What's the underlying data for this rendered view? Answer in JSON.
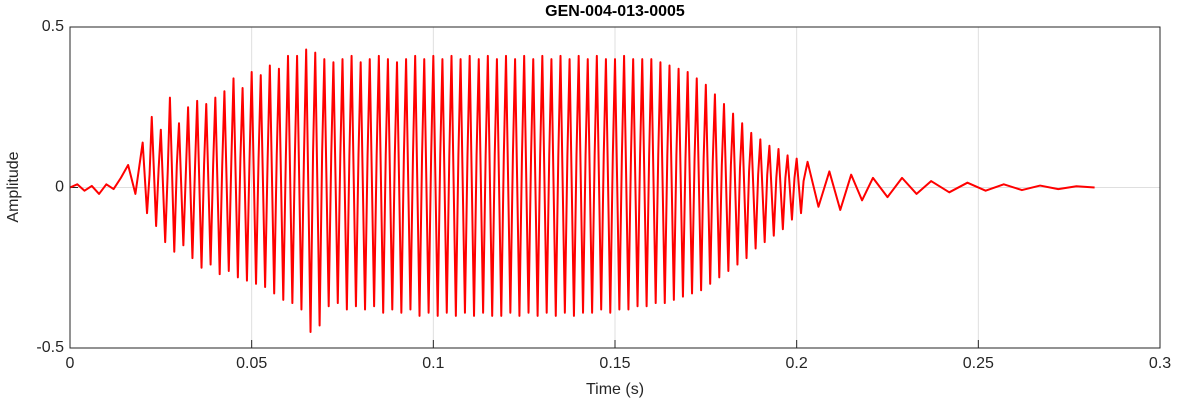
{
  "chart_data": {
    "type": "line",
    "title": "GEN-004-013-0005",
    "xlabel": "Time (s)",
    "ylabel": "Amplitude",
    "x": [
      0,
      0.002,
      0.004,
      0.006,
      0.008,
      0.01,
      0.012,
      0.014,
      0.016,
      0.018,
      0.02,
      0.0212,
      0.0219,
      0.0225,
      0.0237,
      0.0244,
      0.025,
      0.0262,
      0.0269,
      0.0275,
      0.0287,
      0.0294,
      0.03,
      0.0312,
      0.0319,
      0.0325,
      0.0337,
      0.0344,
      0.035,
      0.0362,
      0.0369,
      0.0375,
      0.0387,
      0.0394,
      0.04,
      0.0412,
      0.0419,
      0.0425,
      0.0437,
      0.0444,
      0.045,
      0.0462,
      0.0469,
      0.0475,
      0.0487,
      0.0494,
      0.05,
      0.0512,
      0.0519,
      0.0525,
      0.0537,
      0.0544,
      0.055,
      0.0562,
      0.0569,
      0.0575,
      0.0587,
      0.0594,
      0.06,
      0.0612,
      0.0619,
      0.0625,
      0.0637,
      0.0644,
      0.065,
      0.0662,
      0.0669,
      0.0675,
      0.0687,
      0.0694,
      0.07,
      0.0712,
      0.0719,
      0.0725,
      0.0737,
      0.0744,
      0.075,
      0.0762,
      0.0769,
      0.0775,
      0.0787,
      0.0794,
      0.08,
      0.0812,
      0.0819,
      0.0825,
      0.0837,
      0.0844,
      0.085,
      0.0862,
      0.0869,
      0.0875,
      0.0887,
      0.0894,
      0.09,
      0.0912,
      0.0919,
      0.0925,
      0.0937,
      0.0944,
      0.095,
      0.0962,
      0.0969,
      0.0975,
      0.0987,
      0.0994,
      0.1,
      0.1012,
      0.1019,
      0.1025,
      0.1037,
      0.1044,
      0.105,
      0.1062,
      0.1069,
      0.1075,
      0.1087,
      0.1094,
      0.11,
      0.1112,
      0.1119,
      0.1125,
      0.1137,
      0.1144,
      0.115,
      0.1162,
      0.1169,
      0.1175,
      0.1187,
      0.1194,
      0.12,
      0.1212,
      0.1219,
      0.1225,
      0.1237,
      0.1244,
      0.125,
      0.1262,
      0.1269,
      0.1275,
      0.1287,
      0.1294,
      0.13,
      0.1312,
      0.1319,
      0.1325,
      0.1337,
      0.1344,
      0.135,
      0.1362,
      0.1369,
      0.1375,
      0.1387,
      0.1394,
      0.14,
      0.1412,
      0.1419,
      0.1425,
      0.1437,
      0.1444,
      0.145,
      0.1462,
      0.1469,
      0.1475,
      0.1487,
      0.1494,
      0.15,
      0.1512,
      0.1519,
      0.1525,
      0.1537,
      0.1544,
      0.155,
      0.1562,
      0.1569,
      0.1575,
      0.1587,
      0.1594,
      0.16,
      0.1612,
      0.1619,
      0.1625,
      0.1637,
      0.1644,
      0.165,
      0.1662,
      0.1669,
      0.1675,
      0.1687,
      0.1694,
      0.17,
      0.1712,
      0.1719,
      0.1725,
      0.1737,
      0.1744,
      0.175,
      0.1762,
      0.1769,
      0.1775,
      0.1787,
      0.1794,
      0.18,
      0.1812,
      0.1819,
      0.1825,
      0.1837,
      0.1844,
      0.185,
      0.1862,
      0.1869,
      0.1875,
      0.1887,
      0.1894,
      0.19,
      0.1912,
      0.1919,
      0.1925,
      0.1937,
      0.1944,
      0.195,
      0.1962,
      0.1969,
      0.1975,
      0.1987,
      0.1994,
      0.2,
      0.2012,
      0.2019,
      0.203,
      0.206,
      0.209,
      0.212,
      0.215,
      0.218,
      0.221,
      0.225,
      0.229,
      0.233,
      0.237,
      0.242,
      0.247,
      0.252,
      0.257,
      0.262,
      0.267,
      0.272,
      0.277,
      0.282
    ],
    "series": [
      {
        "name": "Amplitude",
        "color": "#ff0000",
        "values": [
          0,
          0.01,
          -0.01,
          0.005,
          -0.02,
          0.01,
          -0.005,
          0.03,
          0.07,
          -0.02,
          0.14,
          -0.08,
          0.04,
          0.22,
          -0.12,
          0.06,
          0.18,
          -0.17,
          0.05,
          0.28,
          -0.2,
          0.07,
          0.2,
          -0.18,
          0.05,
          0.25,
          -0.22,
          0.06,
          0.27,
          -0.25,
          0.07,
          0.26,
          -0.24,
          0.07,
          0.28,
          -0.27,
          0.07,
          0.3,
          -0.26,
          0.08,
          0.34,
          -0.28,
          0.09,
          0.31,
          -0.29,
          0.08,
          0.36,
          -0.3,
          0.09,
          0.35,
          -0.31,
          0.09,
          0.38,
          -0.33,
          0.1,
          0.37,
          -0.35,
          0.09,
          0.41,
          -0.36,
          0.1,
          0.41,
          -0.38,
          0.1,
          0.43,
          -0.45,
          0.11,
          0.42,
          -0.43,
          0.11,
          0.4,
          -0.37,
          0.1,
          0.39,
          -0.36,
          0.1,
          0.4,
          -0.38,
          0.1,
          0.41,
          -0.37,
          0.1,
          0.39,
          -0.38,
          0.1,
          0.4,
          -0.37,
          0.1,
          0.41,
          -0.39,
          0.1,
          0.4,
          -0.38,
          0.1,
          0.39,
          -0.39,
          0.1,
          0.4,
          -0.38,
          0.1,
          0.41,
          -0.4,
          0.1,
          0.4,
          -0.39,
          0.1,
          0.41,
          -0.4,
          0.1,
          0.4,
          -0.39,
          0.1,
          0.41,
          -0.4,
          0.1,
          0.4,
          -0.39,
          0.1,
          0.41,
          -0.4,
          0.1,
          0.4,
          -0.39,
          0.1,
          0.41,
          -0.4,
          0.1,
          0.4,
          -0.4,
          0.1,
          0.41,
          -0.39,
          0.1,
          0.4,
          -0.4,
          0.1,
          0.41,
          -0.39,
          0.1,
          0.4,
          -0.4,
          0.1,
          0.41,
          -0.39,
          0.1,
          0.4,
          -0.4,
          0.1,
          0.41,
          -0.39,
          0.1,
          0.4,
          -0.4,
          0.1,
          0.41,
          -0.39,
          0.1,
          0.4,
          -0.39,
          0.1,
          0.41,
          -0.38,
          0.1,
          0.4,
          -0.39,
          0.1,
          0.4,
          -0.38,
          0.1,
          0.41,
          -0.38,
          0.1,
          0.4,
          -0.37,
          0.1,
          0.4,
          -0.37,
          0.1,
          0.4,
          -0.36,
          0.1,
          0.39,
          -0.36,
          0.1,
          0.38,
          -0.35,
          0.1,
          0.37,
          -0.34,
          0.09,
          0.36,
          -0.33,
          0.09,
          0.34,
          -0.32,
          0.09,
          0.32,
          -0.3,
          0.08,
          0.29,
          -0.28,
          0.07,
          0.26,
          -0.26,
          0.07,
          0.23,
          -0.24,
          0.06,
          0.2,
          -0.22,
          0.05,
          0.17,
          -0.19,
          0.04,
          0.15,
          -0.17,
          0.04,
          0.13,
          -0.15,
          0.03,
          0.12,
          -0.13,
          0.03,
          0.1,
          -0.1,
          0.03,
          0.09,
          -0.08,
          0.02,
          0.08,
          -0.06,
          0.05,
          -0.07,
          0.04,
          -0.04,
          0.03,
          -0.03,
          0.03,
          -0.02,
          0.02,
          -0.015,
          0.015,
          -0.01,
          0.01,
          -0.008,
          0.006,
          -0.005,
          0.004,
          0
        ]
      }
    ],
    "xlim": [
      0,
      0.3
    ],
    "xticks": [
      0,
      0.05,
      0.1,
      0.15,
      0.2,
      0.25,
      0.3
    ],
    "ylim": [
      -0.5,
      0.5
    ],
    "yticks": [
      -0.5,
      0,
      0.5
    ],
    "grid": true
  }
}
